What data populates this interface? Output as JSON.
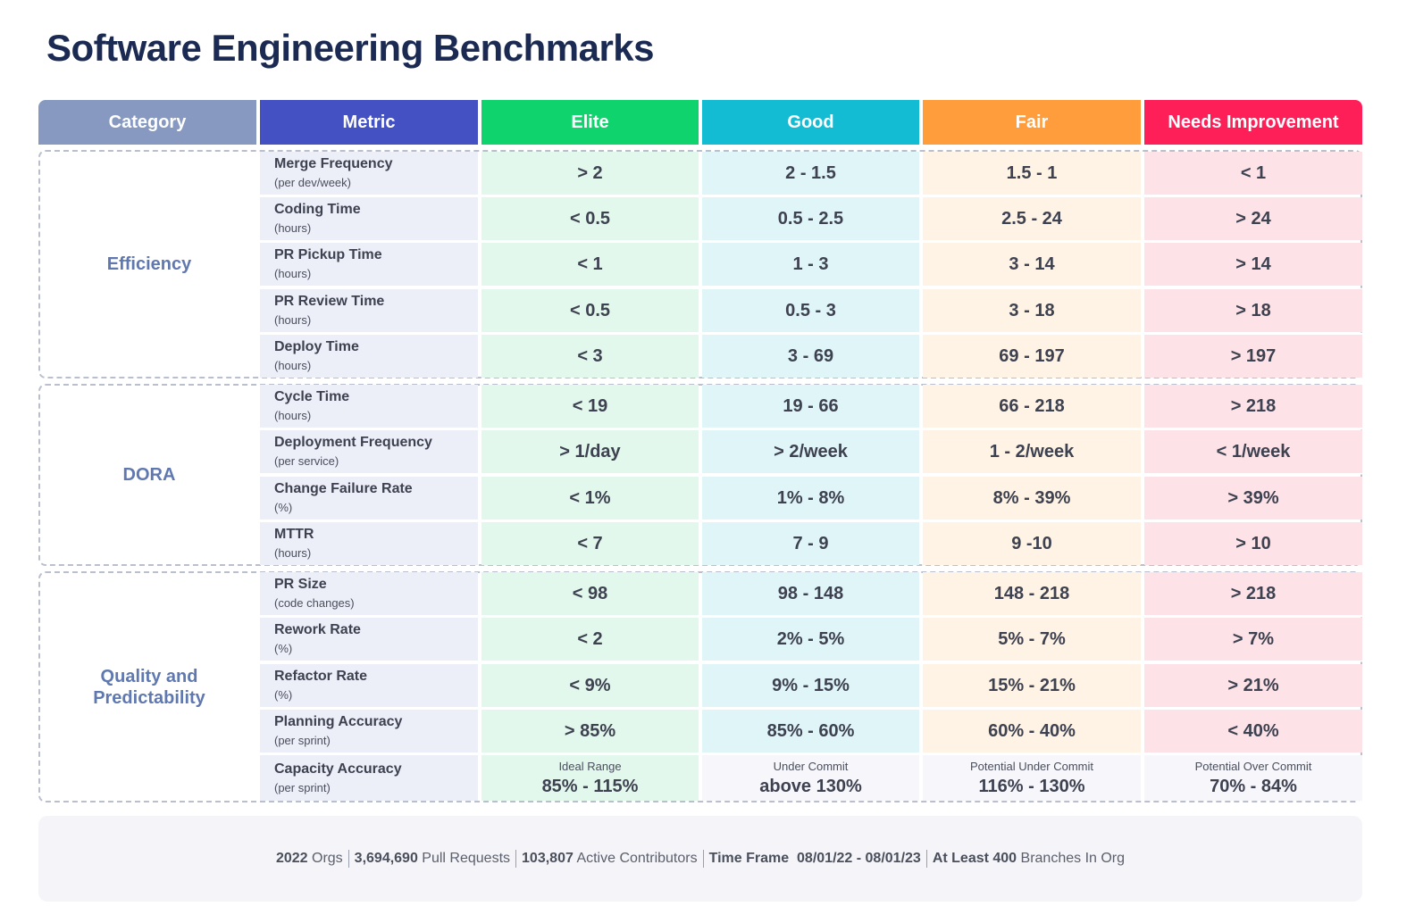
{
  "title": "Software Engineering Benchmarks",
  "colors": {
    "category_header": "#8799c0",
    "metric_header": "#4451c2",
    "elite": "#0fd36c",
    "good": "#14bcd3",
    "fair": "#ff9d3d",
    "needs": "#ff1f58",
    "category_text": "#6078b0",
    "title_text": "#1b2a52"
  },
  "headers": {
    "category": "Category",
    "metric": "Metric",
    "elite": "Elite",
    "good": "Good",
    "fair": "Fair",
    "needs": "Needs Improvement"
  },
  "groups": [
    {
      "label": "Efficiency",
      "rows": [
        {
          "metric": "Merge Frequency",
          "unit": "(per dev/week)",
          "elite": "> 2",
          "good": "2 - 1.5",
          "fair": "1.5 - 1",
          "needs": "< 1"
        },
        {
          "metric": "Coding Time",
          "unit": "(hours)",
          "elite": "< 0.5",
          "good": "0.5 - 2.5",
          "fair": "2.5 - 24",
          "needs": "> 24"
        },
        {
          "metric": "PR Pickup Time",
          "unit": "(hours)",
          "elite": "< 1",
          "good": "1 - 3",
          "fair": "3 - 14",
          "needs": "> 14"
        },
        {
          "metric": "PR Review Time",
          "unit": "(hours)",
          "elite": "< 0.5",
          "good": "0.5 - 3",
          "fair": "3 - 18",
          "needs": "> 18"
        },
        {
          "metric": "Deploy Time",
          "unit": "(hours)",
          "elite": "< 3",
          "good": "3 - 69",
          "fair": "69 - 197",
          "needs": "> 197"
        }
      ]
    },
    {
      "label": "DORA",
      "rows": [
        {
          "metric": "Cycle Time",
          "unit": "(hours)",
          "elite": "< 19",
          "good": "19 - 66",
          "fair": "66 - 218",
          "needs": "> 218"
        },
        {
          "metric": "Deployment Frequency",
          "unit": "(per service)",
          "elite": "> 1/day",
          "good": "> 2/week",
          "fair": "1 - 2/week",
          "needs": "< 1/week"
        },
        {
          "metric": "Change Failure Rate",
          "unit": "(%)",
          "elite": "< 1%",
          "good": "1% - 8%",
          "fair": "8% - 39%",
          "needs": "> 39%"
        },
        {
          "metric": "MTTR",
          "unit": "(hours)",
          "elite": "< 7",
          "good": "7 - 9",
          "fair": "9 -10",
          "needs": "> 10"
        }
      ]
    },
    {
      "label_line1": "Quality and",
      "label_line2": "Predictability",
      "rows": [
        {
          "metric": "PR Size",
          "unit": "(code changes)",
          "elite": "< 98",
          "good": "98 - 148",
          "fair": "148 - 218",
          "needs": "> 218"
        },
        {
          "metric": "Rework Rate",
          "unit": "(%)",
          "elite": "< 2",
          "good": "2% - 5%",
          "fair": "5% - 7%",
          "needs": "> 7%"
        },
        {
          "metric": "Refactor Rate",
          "unit": "(%)",
          "elite": "< 9%",
          "good": "9% - 15%",
          "fair": "15% - 21%",
          "needs": "> 21%"
        },
        {
          "metric": "Planning Accuracy",
          "unit": "(per sprint)",
          "elite": "> 85%",
          "good": "85% - 60%",
          "fair": "60% - 40%",
          "needs": "< 40%"
        }
      ],
      "capacity": {
        "metric": "Capacity Accuracy",
        "unit": "(per sprint)",
        "elite_label": "Ideal Range",
        "elite_value": "85% - 115%",
        "good_label": "Under Commit",
        "good_value": "above 130%",
        "fair_label": "Potential Under Commit",
        "fair_value": "116% - 130%",
        "needs_label": "Potential Over Commit",
        "needs_value": "70% - 84%"
      }
    }
  ],
  "footer": {
    "orgs_value": "2022",
    "orgs_label": " Orgs",
    "prs_value": "3,694,690",
    "prs_label": " Pull Requests",
    "contrib_value": "103,807",
    "contrib_label": " Active Contributors",
    "timeframe_label": "Time Frame ",
    "timeframe_value": " 08/01/22 - 08/01/23",
    "branches_value": "At Least 400",
    "branches_label": " Branches In Org"
  }
}
